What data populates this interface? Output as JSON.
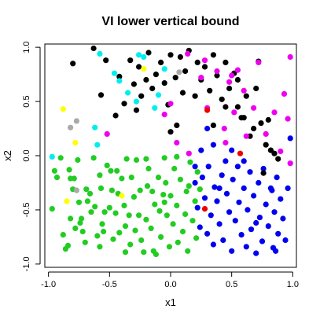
{
  "chart_data": {
    "type": "scatter",
    "title": "VI lower vertical bound",
    "xlabel": "x1",
    "ylabel": "x2",
    "xlim": [
      -1.03,
      1.03
    ],
    "ylim": [
      -1.03,
      1.03
    ],
    "xticks": [
      -1.0,
      -0.5,
      0.0,
      0.5,
      1.0
    ],
    "xtick_labels": [
      "-1.0",
      "-0.5",
      "0.0",
      "0.5",
      "1.0"
    ],
    "yticks": [
      -1.0,
      -0.5,
      0.0,
      0.5,
      1.0
    ],
    "ytick_labels": [
      "-1.0",
      "-0.5",
      "0.0",
      "0.5",
      "1.0"
    ],
    "grid": false,
    "legend": "none",
    "series": [
      {
        "color": "#22cc22",
        "points": [
          [
            -0.97,
            -0.49
          ],
          [
            -0.95,
            -0.14
          ],
          [
            -0.93,
            -0.2
          ],
          [
            -0.9,
            -0.02
          ],
          [
            -0.88,
            -0.73
          ],
          [
            -0.86,
            -0.86
          ],
          [
            -0.84,
            -0.83
          ],
          [
            -0.83,
            -0.13
          ],
          [
            -0.82,
            -0.21
          ],
          [
            -0.8,
            -0.31
          ],
          [
            -0.79,
            -0.21
          ],
          [
            -0.78,
            -0.67
          ],
          [
            -0.76,
            -0.04
          ],
          [
            -0.75,
            -0.43
          ],
          [
            -0.74,
            -0.62
          ],
          [
            -0.73,
            -0.58
          ],
          [
            -0.72,
            -0.7
          ],
          [
            -0.7,
            -0.8
          ],
          [
            -0.69,
            -0.31
          ],
          [
            -0.68,
            -0.42
          ],
          [
            -0.66,
            -0.35
          ],
          [
            -0.65,
            -0.52
          ],
          [
            -0.63,
            -0.02
          ],
          [
            -0.62,
            -0.47
          ],
          [
            -0.6,
            -0.74
          ],
          [
            -0.58,
            -0.18
          ],
          [
            -0.57,
            -0.3
          ],
          [
            -0.56,
            -0.63
          ],
          [
            -0.55,
            -0.7
          ],
          [
            -0.54,
            -0.52
          ],
          [
            -0.52,
            -0.09
          ],
          [
            -0.5,
            -0.48
          ],
          [
            -0.49,
            -0.14
          ],
          [
            -0.48,
            -0.32
          ],
          [
            -0.47,
            -0.77
          ],
          [
            -0.45,
            -0.53
          ],
          [
            -0.44,
            -0.14
          ],
          [
            -0.43,
            -0.35
          ],
          [
            -0.42,
            -0.71
          ],
          [
            -0.4,
            -0.21
          ],
          [
            -0.38,
            -0.46
          ],
          [
            -0.37,
            -0.65
          ],
          [
            -0.36,
            -0.03
          ],
          [
            -0.34,
            -0.55
          ],
          [
            -0.33,
            -0.82
          ],
          [
            -0.32,
            -0.2
          ],
          [
            -0.3,
            -0.38
          ],
          [
            -0.29,
            -0.69
          ],
          [
            -0.28,
            -0.04
          ],
          [
            -0.26,
            -0.55
          ],
          [
            -0.25,
            -0.32
          ],
          [
            -0.24,
            -0.78
          ],
          [
            -0.22,
            -0.89
          ],
          [
            -0.2,
            -0.59
          ],
          [
            -0.19,
            -0.28
          ],
          [
            -0.18,
            -0.12
          ],
          [
            -0.16,
            -0.67
          ],
          [
            -0.15,
            -0.33
          ],
          [
            -0.13,
            -0.45
          ],
          [
            -0.12,
            -0.91
          ],
          [
            -0.1,
            -0.2
          ],
          [
            -0.09,
            -0.51
          ],
          [
            -0.08,
            -0.75
          ],
          [
            -0.06,
            -0.36
          ],
          [
            -0.05,
            -0.02
          ],
          [
            -0.04,
            -0.25
          ],
          [
            -0.03,
            -0.55
          ],
          [
            -0.01,
            -0.84
          ],
          [
            0.0,
            -0.37
          ],
          [
            0.02,
            -0.63
          ],
          [
            0.03,
            -0.12
          ],
          [
            0.05,
            -0.46
          ],
          [
            0.06,
            -0.8
          ],
          [
            0.08,
            -0.22
          ],
          [
            0.1,
            -0.7
          ],
          [
            0.12,
            -0.54
          ],
          [
            0.13,
            -0.33
          ],
          [
            0.14,
            -0.88
          ],
          [
            0.16,
            -0.06
          ],
          [
            0.18,
            -0.6
          ],
          [
            0.2,
            -0.42
          ],
          [
            0.21,
            -0.76
          ],
          [
            0.22,
            -0.15
          ],
          [
            0.24,
            -0.31
          ],
          [
            0.05,
            -0.01
          ],
          [
            -0.14,
            -0.88
          ],
          [
            -0.37,
            -0.89
          ],
          [
            -0.58,
            -0.84
          ],
          [
            -0.82,
            -0.58
          ],
          [
            -0.2,
            -0.03
          ],
          [
            -0.05,
            -0.43
          ],
          [
            0.15,
            -0.28
          ]
        ]
      },
      {
        "color": "#0000ee",
        "points": [
          [
            0.2,
            -0.25
          ],
          [
            0.22,
            -0.48
          ],
          [
            0.24,
            -0.66
          ],
          [
            0.26,
            -0.2
          ],
          [
            0.28,
            -0.39
          ],
          [
            0.3,
            -0.72
          ],
          [
            0.31,
            -0.1
          ],
          [
            0.33,
            -0.55
          ],
          [
            0.35,
            -0.82
          ],
          [
            0.36,
            -0.29
          ],
          [
            0.38,
            -0.42
          ],
          [
            0.4,
            -0.63
          ],
          [
            0.42,
            -0.18
          ],
          [
            0.43,
            -0.78
          ],
          [
            0.45,
            -0.05
          ],
          [
            0.46,
            -0.35
          ],
          [
            0.48,
            -0.52
          ],
          [
            0.5,
            -0.88
          ],
          [
            0.51,
            -0.22
          ],
          [
            0.53,
            -0.6
          ],
          [
            0.55,
            -0.1
          ],
          [
            0.56,
            -0.43
          ],
          [
            0.58,
            -0.73
          ],
          [
            0.6,
            -0.3
          ],
          [
            0.62,
            -0.84
          ],
          [
            0.63,
            -0.5
          ],
          [
            0.65,
            -0.15
          ],
          [
            0.66,
            -0.68
          ],
          [
            0.68,
            -0.37
          ],
          [
            0.7,
            -0.9
          ],
          [
            0.72,
            -0.25
          ],
          [
            0.73,
            -0.57
          ],
          [
            0.75,
            -0.79
          ],
          [
            0.76,
            -0.12
          ],
          [
            0.78,
            -0.45
          ],
          [
            0.8,
            -0.65
          ],
          [
            0.82,
            -0.3
          ],
          [
            0.84,
            -0.85
          ],
          [
            0.85,
            -0.52
          ],
          [
            0.87,
            -0.2
          ],
          [
            0.88,
            -0.72
          ],
          [
            0.9,
            -0.4
          ],
          [
            0.92,
            -0.58
          ],
          [
            0.94,
            -0.78
          ],
          [
            0.96,
            -0.3
          ],
          [
            0.3,
            0.25
          ],
          [
            0.25,
            0.05
          ],
          [
            0.35,
            0.1
          ],
          [
            0.5,
            0.05
          ],
          [
            0.98,
            0.16
          ],
          [
            0.6,
            -0.05
          ],
          [
            0.83,
            -0.32
          ],
          [
            0.4,
            -0.3
          ],
          [
            0.2,
            -0.1
          ],
          [
            0.86,
            -0.88
          ],
          [
            0.7,
            -0.62
          ]
        ]
      },
      {
        "color": "#000000",
        "points": [
          [
            -0.8,
            0.85
          ],
          [
            -0.63,
            0.99
          ],
          [
            -0.57,
            0.56
          ],
          [
            -0.53,
            0.88
          ],
          [
            -0.45,
            0.37
          ],
          [
            -0.42,
            0.73
          ],
          [
            -0.38,
            0.48
          ],
          [
            -0.33,
            0.88
          ],
          [
            -0.3,
            0.66
          ],
          [
            -0.28,
            0.42
          ],
          [
            -0.26,
            0.82
          ],
          [
            -0.24,
            0.55
          ],
          [
            -0.2,
            0.7
          ],
          [
            -0.18,
            0.95
          ],
          [
            -0.15,
            0.62
          ],
          [
            -0.12,
            0.75
          ],
          [
            -0.08,
            0.86
          ],
          [
            -0.05,
            0.67
          ],
          [
            -0.02,
            0.47
          ],
          [
            0.0,
            0.93
          ],
          [
            0.04,
            0.72
          ],
          [
            0.08,
            0.91
          ],
          [
            0.1,
            0.58
          ],
          [
            0.12,
            0.78
          ],
          [
            0.15,
            0.97
          ],
          [
            0.2,
            0.55
          ],
          [
            0.22,
            0.86
          ],
          [
            0.25,
            0.7
          ],
          [
            0.28,
            0.82
          ],
          [
            0.32,
            0.6
          ],
          [
            0.35,
            0.93
          ],
          [
            0.38,
            0.74
          ],
          [
            0.42,
            0.52
          ],
          [
            0.45,
            0.86
          ],
          [
            0.48,
            0.62
          ],
          [
            0.52,
            0.76
          ],
          [
            0.55,
            0.45
          ],
          [
            0.58,
            0.35
          ],
          [
            0.62,
            0.55
          ],
          [
            0.65,
            0.18
          ],
          [
            0.68,
            0.25
          ],
          [
            0.72,
            0.87
          ],
          [
            0.74,
            0.3
          ],
          [
            0.76,
            -0.16
          ],
          [
            0.78,
            0.1
          ],
          [
            0.8,
            0.33
          ],
          [
            0.82,
            0.05
          ],
          [
            0.85,
            0.02
          ],
          [
            0.88,
            -0.03
          ],
          [
            0.35,
            0.28
          ],
          [
            0.0,
            0.22
          ],
          [
            0.45,
            0.45
          ],
          [
            0.55,
            0.7
          ],
          [
            0.7,
            0.62
          ],
          [
            0.05,
            0.28
          ],
          [
            0.6,
            0.35
          ]
        ]
      },
      {
        "color": "#ee00ee",
        "points": [
          [
            0.0,
            0.48
          ],
          [
            0.05,
            0.12
          ],
          [
            0.14,
            0.94
          ],
          [
            0.28,
            0.88
          ],
          [
            0.38,
            0.78
          ],
          [
            0.44,
            0.25
          ],
          [
            0.48,
            0.68
          ],
          [
            0.5,
            0.74
          ],
          [
            0.52,
            0.4
          ],
          [
            0.55,
            0.79
          ],
          [
            0.6,
            0.6
          ],
          [
            0.68,
            0.44
          ],
          [
            0.72,
            0.86
          ],
          [
            0.78,
            0.2
          ],
          [
            0.85,
            0.4
          ],
          [
            0.9,
            0.04
          ],
          [
            0.93,
            0.57
          ],
          [
            0.96,
            0.34
          ],
          [
            0.98,
            0.91
          ],
          [
            0.98,
            -0.07
          ],
          [
            0.15,
            0.02
          ],
          [
            -0.05,
            0.38
          ],
          [
            -0.52,
            0.2
          ],
          [
            0.3,
            0.44
          ],
          [
            0.62,
            0.18
          ],
          [
            0.45,
            0.12
          ],
          [
            0.25,
            0.72
          ]
        ]
      },
      {
        "color": "#00eeee",
        "points": [
          [
            -0.97,
            -0.01
          ],
          [
            -0.62,
            0.26
          ],
          [
            -0.58,
            0.94
          ],
          [
            -0.46,
            0.76
          ],
          [
            -0.42,
            0.69
          ],
          [
            -0.35,
            0.58
          ],
          [
            -0.28,
            0.5
          ],
          [
            -0.22,
            0.91
          ],
          [
            -0.1,
            0.56
          ],
          [
            -0.13,
            0.44
          ],
          [
            -0.6,
            0.1
          ],
          [
            -0.26,
            0.93
          ],
          [
            -0.05,
            0.8
          ]
        ]
      },
      {
        "color": "#aaaaaa",
        "points": [
          [
            -0.77,
            0.32
          ],
          [
            -0.82,
            0.26
          ],
          [
            -0.77,
            -0.32
          ],
          [
            0.07,
            0.77
          ]
        ]
      },
      {
        "color": "#ffff00",
        "points": [
          [
            -0.88,
            0.43
          ],
          [
            -0.85,
            -0.42
          ],
          [
            -0.78,
            0.12
          ],
          [
            -0.22,
            0.8
          ],
          [
            -0.4,
            -0.37
          ]
        ]
      },
      {
        "color": "#ee0000",
        "points": [
          [
            0.3,
            0.42
          ],
          [
            0.28,
            -0.49
          ],
          [
            0.57,
            0.02
          ]
        ]
      }
    ]
  }
}
